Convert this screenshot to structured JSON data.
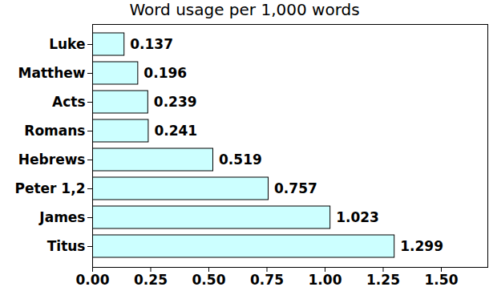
{
  "chart_data": {
    "type": "bar",
    "title": "Word usage per 1,000 words",
    "orientation": "horizontal",
    "categories": [
      "Luke",
      "Matthew",
      "Acts",
      "Romans",
      "Hebrews",
      "Peter 1,2",
      "James",
      "Titus"
    ],
    "values": [
      0.137,
      0.196,
      0.239,
      0.241,
      0.519,
      0.757,
      1.023,
      1.299
    ],
    "color": "#ccffff",
    "xlim": [
      0,
      1.7
    ],
    "xticks": [
      {
        "value": 0,
        "label": "0.00"
      },
      {
        "value": 0.25,
        "label": "0.25"
      },
      {
        "value": 0.5,
        "label": "0.50"
      },
      {
        "value": 0.75,
        "label": "0.75"
      },
      {
        "value": 1,
        "label": "1.00"
      },
      {
        "value": 1.25,
        "label": "1.25"
      },
      {
        "value": 1.5,
        "label": "1.50"
      }
    ],
    "grid": false,
    "data_labels": true
  }
}
